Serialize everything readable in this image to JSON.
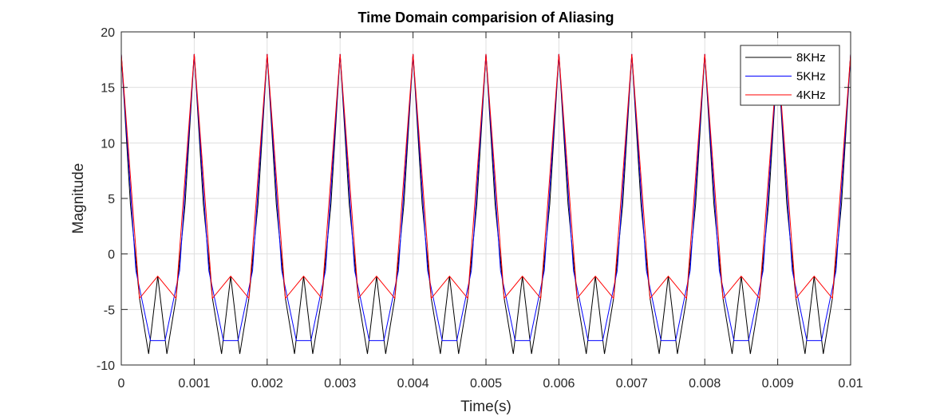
{
  "chart_data": {
    "type": "line",
    "title": "Time Domain comparision of Aliasing",
    "xlabel": "Time(s)",
    "ylabel": "Magnitude",
    "xlim": [
      0,
      0.01
    ],
    "ylim": [
      -10,
      20
    ],
    "xticks": [
      0,
      0.001,
      0.002,
      0.003,
      0.004,
      0.005,
      0.006,
      0.007,
      0.008,
      0.009,
      0.01
    ],
    "xtick_labels": [
      "0",
      "0.001",
      "0.002",
      "0.003",
      "0.004",
      "0.005",
      "0.006",
      "0.007",
      "0.008",
      "0.009",
      "0.01"
    ],
    "yticks": [
      -10,
      -5,
      0,
      5,
      10,
      15,
      20
    ],
    "ytick_labels": [
      "-10",
      "-5",
      "0",
      "5",
      "10",
      "15",
      "20"
    ],
    "grid": true,
    "legend_position": "top-right",
    "series": [
      {
        "name": "8KHz",
        "color": "#000000",
        "period": 0.001,
        "x": [
          0,
          0.000125,
          0.00025,
          0.000375,
          0.0005,
          0.000625,
          0.00075,
          0.000875,
          0.001
        ],
        "y": [
          18,
          4.5,
          -4,
          -9,
          -2,
          -9,
          -4,
          4.5,
          18
        ]
      },
      {
        "name": "5KHz",
        "color": "#0000ff",
        "period": 0.001,
        "x": [
          0,
          0.0002,
          0.0004,
          0.0006,
          0.0008,
          0.001
        ],
        "y": [
          18,
          -1.5,
          -7.8,
          -7.8,
          -1.5,
          18
        ]
      },
      {
        "name": "4KHz",
        "color": "#ff0000",
        "period": 0.001,
        "x": [
          0,
          0.00025,
          0.0005,
          0.00075,
          0.001
        ],
        "y": [
          18,
          -4,
          -2,
          -4,
          18
        ]
      }
    ]
  }
}
